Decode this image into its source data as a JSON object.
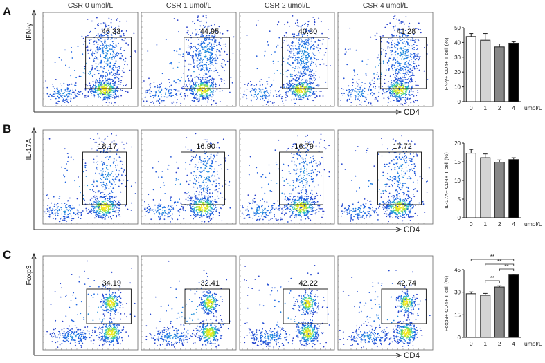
{
  "conditions": [
    "CSR 0 umol/L",
    "CSR 1 umol/L",
    "CSR 2 umol/L",
    "CSR 4 umol/L"
  ],
  "panels": [
    {
      "letter": "A",
      "flow_ylabel": "IFN-γ",
      "flow_xlabel": "CD4",
      "gate_values": [
        "46.33",
        "44.95",
        "40.30",
        "41.28"
      ]
    },
    {
      "letter": "B",
      "flow_ylabel": "IL-17A",
      "flow_xlabel": "CD4",
      "gate_values": [
        "18.17",
        "16.90",
        "16.79",
        "17.72"
      ]
    },
    {
      "letter": "C",
      "flow_ylabel": "Foxp3",
      "flow_xlabel": "CD4",
      "gate_values": [
        "34.19",
        "32.41",
        "42.22",
        "42.74"
      ]
    }
  ],
  "chart_data": [
    {
      "type": "bar",
      "categories": [
        "0",
        "1",
        "2",
        "4"
      ],
      "values": [
        44.0,
        41.5,
        37.0,
        39.5
      ],
      "errors": [
        2.0,
        4.5,
        2.0,
        1.0
      ],
      "bar_colors": [
        "#ffffff",
        "#d3d3d3",
        "#888888",
        "#000000"
      ],
      "ylabel": "IFN-γ+ CD4+ T cell (%)",
      "xunit": "umol/L",
      "ylim": [
        0,
        50
      ],
      "yticks": [
        "0",
        "10",
        "20",
        "30",
        "40",
        "50"
      ],
      "significance": []
    },
    {
      "type": "bar",
      "categories": [
        "0",
        "1",
        "2",
        "4"
      ],
      "values": [
        17.3,
        16.1,
        14.9,
        15.6
      ],
      "errors": [
        1.0,
        1.0,
        0.6,
        0.5
      ],
      "bar_colors": [
        "#ffffff",
        "#d3d3d3",
        "#888888",
        "#000000"
      ],
      "ylabel": "IL-17A+ CD4+ T cell (%)",
      "xunit": "umol/L",
      "ylim": [
        0,
        20
      ],
      "yticks": [
        "0",
        "5",
        "10",
        "15",
        "20"
      ],
      "significance": []
    },
    {
      "type": "bar",
      "categories": [
        "0",
        "1",
        "2",
        "4"
      ],
      "values": [
        29.0,
        28.0,
        33.5,
        41.5
      ],
      "errors": [
        1.2,
        1.2,
        0.8,
        0.4
      ],
      "bar_colors": [
        "#ffffff",
        "#d3d3d3",
        "#888888",
        "#000000"
      ],
      "ylabel": "Foxp3+ CD4+ T cell (%)",
      "xunit": "umol/L",
      "ylim": [
        0,
        45
      ],
      "yticks": [
        "0",
        "15",
        "30",
        "45"
      ],
      "significance": [
        {
          "from": "0",
          "to": "4",
          "label": "**"
        },
        {
          "from": "1",
          "to": "4",
          "label": "**"
        },
        {
          "from": "2",
          "to": "4",
          "label": "**"
        },
        {
          "from": "1",
          "to": "2",
          "label": "**"
        }
      ]
    }
  ]
}
